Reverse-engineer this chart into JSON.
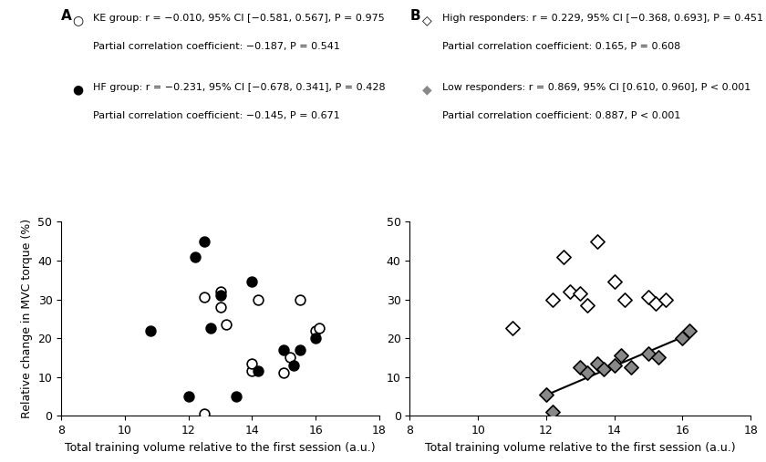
{
  "panel_A": {
    "label": "A",
    "KE_x": [
      12.5,
      12.5,
      13.0,
      13.0,
      13.2,
      14.0,
      14.0,
      14.2,
      15.0,
      15.2,
      15.5,
      16.0,
      16.1
    ],
    "KE_y": [
      0.5,
      30.5,
      28.0,
      32.0,
      23.5,
      11.5,
      13.5,
      30.0,
      11.0,
      15.0,
      30.0,
      22.0,
      22.5
    ],
    "HF_x": [
      10.8,
      12.0,
      12.2,
      12.5,
      12.7,
      13.0,
      13.5,
      14.0,
      14.2,
      15.0,
      15.3,
      15.5,
      16.0
    ],
    "HF_y": [
      22.0,
      5.0,
      41.0,
      45.0,
      22.5,
      31.0,
      5.0,
      34.5,
      11.5,
      17.0,
      13.0,
      17.0,
      20.0
    ],
    "legend1_line1": "KE group: r = −0.010, 95% CI [−0.581, 0.567], P = 0.975",
    "legend1_line2": "Partial correlation coefficient: −0.187, P = 0.541",
    "legend2_line1": "HF group: r = −0.231, 95% CI [−0.678, 0.341], P = 0.428",
    "legend2_line2": "Partial correlation coefficient: −0.145, P = 0.671",
    "ylabel": "Relative change in MVC torque (%)",
    "xlabel": "Total training volume relative to the first session (a.u.)",
    "xlim": [
      8,
      18
    ],
    "ylim": [
      0,
      50
    ],
    "xticks": [
      8,
      10,
      12,
      14,
      16,
      18
    ],
    "yticks": [
      0,
      10,
      20,
      30,
      40,
      50
    ]
  },
  "panel_B": {
    "label": "B",
    "HR_x": [
      11.0,
      12.2,
      12.5,
      12.7,
      13.0,
      13.2,
      13.5,
      14.0,
      14.3,
      15.0,
      15.2,
      15.5
    ],
    "HR_y": [
      22.5,
      30.0,
      41.0,
      32.0,
      31.5,
      28.5,
      45.0,
      34.5,
      30.0,
      30.5,
      29.0,
      30.0
    ],
    "LR_x": [
      12.0,
      12.2,
      13.0,
      13.2,
      13.5,
      13.7,
      14.0,
      14.2,
      14.5,
      15.0,
      15.3,
      16.0,
      16.2
    ],
    "LR_y": [
      5.5,
      1.0,
      12.5,
      11.0,
      13.5,
      12.0,
      13.0,
      15.5,
      12.5,
      16.0,
      15.0,
      20.0,
      22.0
    ],
    "legend1_line1": "High responders: r = 0.229, 95% CI [−0.368, 0.693], P = 0.451",
    "legend1_line2": "Partial correlation coefficient: 0.165, P = 0.608",
    "legend2_line1": "Low responders: r = 0.869, 95% CI [0.610, 0.960], P < 0.001",
    "legend2_line2": "Partial correlation coefficient: 0.887, P < 0.001",
    "xlabel": "Total training volume relative to the first session (a.u.)",
    "xlim": [
      8,
      18
    ],
    "ylim": [
      0,
      50
    ],
    "xticks": [
      8,
      10,
      12,
      14,
      16,
      18
    ],
    "yticks": [
      0,
      10,
      20,
      30,
      40,
      50
    ]
  },
  "background_color": "#ffffff",
  "marker_size": 60,
  "fontsize_legend": 8.0,
  "fontsize_label": 9,
  "fontsize_tick": 9,
  "fontsize_panel_label": 11
}
